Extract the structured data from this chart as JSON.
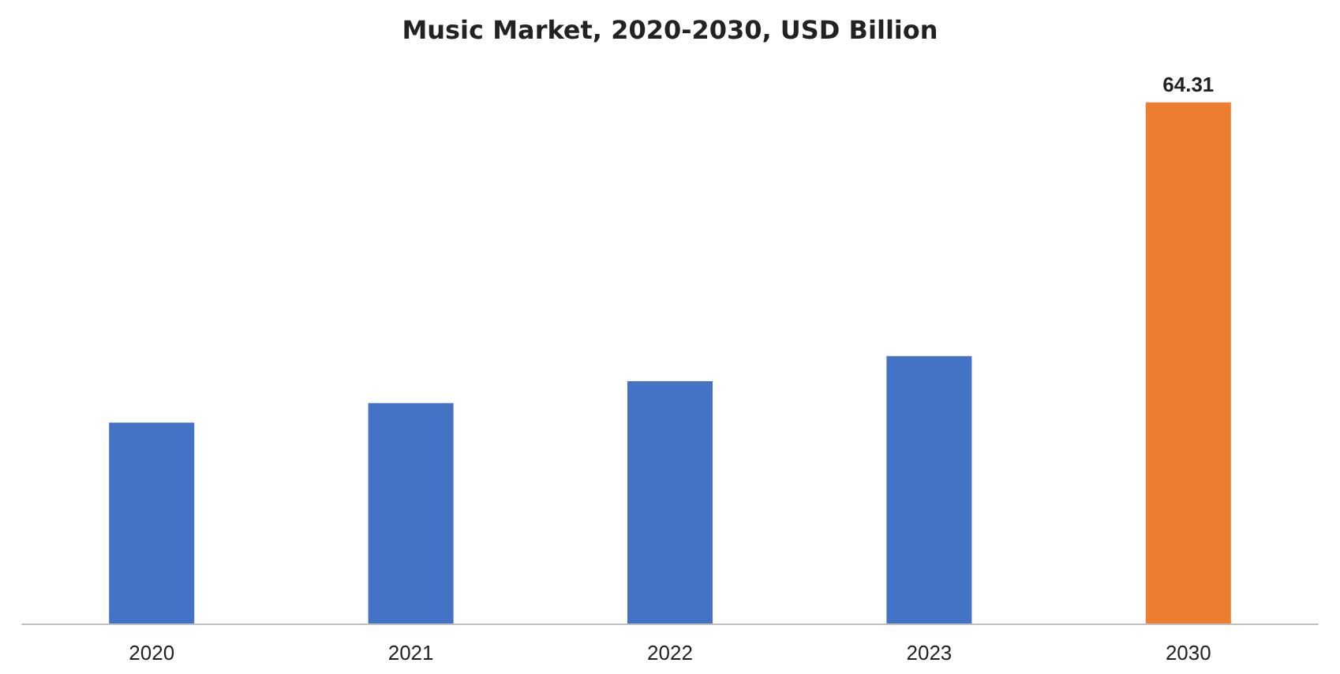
{
  "chart_data": {
    "type": "bar",
    "title": "Music Market, 2020-2030, USD Billion",
    "categories": [
      "2020",
      "2021",
      "2022",
      "2023",
      "2030"
    ],
    "values": [
      24.8,
      27.2,
      29.9,
      33.0,
      64.31
    ],
    "colors": [
      "#4472c4",
      "#4472c4",
      "#4472c4",
      "#4472c4",
      "#ed7d31"
    ],
    "value_labels": [
      null,
      null,
      null,
      null,
      "64.31"
    ]
  }
}
